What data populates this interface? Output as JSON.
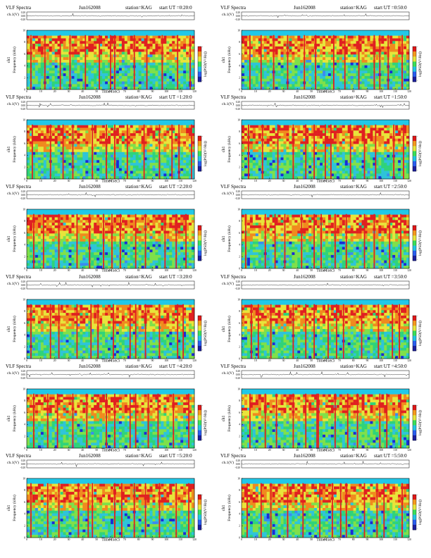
{
  "page": {
    "width": 612,
    "height": 792
  },
  "chart_data": [
    {
      "type": "heatmap",
      "title": "VLF Spectra",
      "date": "Jun162008",
      "station": "station=KAG",
      "start_ut": "start UT =0:20:0",
      "ch_label": "ch.1(V)",
      "ch_ticks": [
        "0.20",
        "0.00",
        "-0.20"
      ],
      "ylabel_top": "ch1",
      "ylabel": "Frequency (kHz)",
      "ylim": [
        0,
        10
      ],
      "yticks": [
        "0",
        "2",
        "4",
        "6",
        "8",
        "10"
      ],
      "xlabel": "Time (sec)",
      "xlim": [
        0,
        120
      ],
      "xticks": [
        "0",
        "10",
        "20",
        "30",
        "40",
        "50",
        "60",
        "70",
        "80",
        "90",
        "100",
        "110",
        "120"
      ],
      "colorbar_label": "log(PSD(V²/Hz))",
      "colorbar_ticks": [
        "-",
        "-"
      ],
      "bursts": [
        3,
        13,
        24,
        31,
        42,
        52,
        60,
        63,
        77,
        86,
        97,
        108,
        117
      ]
    },
    {
      "type": "heatmap",
      "title": "VLF Spectra",
      "date": "Jun162008",
      "station": "station=KAG",
      "start_ut": "start UT =0:50:0",
      "ch_label": "ch.1(V)",
      "ch_ticks": [
        "0.20",
        "0.00",
        "-0.20"
      ],
      "ylabel_top": "ch1",
      "ylabel": "Frequency (kHz)",
      "ylim": [
        0,
        10
      ],
      "yticks": [
        "0",
        "2",
        "4",
        "6",
        "8",
        "10"
      ],
      "xlabel": "Time (sec)",
      "xlim": [
        0,
        120
      ],
      "xticks": [
        "0",
        "10",
        "20",
        "30",
        "40",
        "50",
        "60",
        "70",
        "80",
        "90",
        "100",
        "110",
        "120"
      ],
      "colorbar_label": "log(PSD(V²/Hz))",
      "colorbar_ticks": [
        "-",
        "-"
      ],
      "bursts": [
        6,
        14,
        23,
        33,
        45,
        53,
        66,
        74,
        84,
        95,
        99,
        105,
        115
      ]
    },
    {
      "type": "heatmap",
      "title": "VLF Spectra",
      "date": "Jun162008",
      "station": "station=KAG",
      "start_ut": "start UT =1:20:0",
      "ch_label": "ch.1(V)",
      "ch_ticks": [
        "0.20",
        "0.00",
        "-0.20"
      ],
      "ylabel_top": "ch1",
      "ylabel": "Frequency (kHz)",
      "ylim": [
        0,
        10
      ],
      "yticks": [
        "0",
        "2",
        "4",
        "6",
        "8",
        "10"
      ],
      "xlabel": "Time (sec)",
      "xlim": [
        0,
        120
      ],
      "xticks": [
        "0",
        "10",
        "20",
        "30",
        "40",
        "50",
        "60",
        "70",
        "80",
        "90",
        "100",
        "110",
        "120"
      ],
      "colorbar_label": "log(PSD(V²/Hz))",
      "colorbar_ticks": [
        "-",
        "-"
      ],
      "bursts": [
        4,
        17,
        26,
        33,
        47,
        57,
        63,
        72,
        84,
        95,
        104,
        109,
        118
      ]
    },
    {
      "type": "heatmap",
      "title": "VLF Spectra",
      "date": "Jun162008",
      "station": "station=KAG",
      "start_ut": "start UT =1:50:0",
      "ch_label": "ch.1(V)",
      "ch_ticks": [
        "0.20",
        "0.00",
        "-0.20"
      ],
      "ylabel_top": "ch1",
      "ylabel": "Frequency (kHz)",
      "ylim": [
        0,
        10
      ],
      "yticks": [
        "0",
        "2",
        "4",
        "6",
        "8",
        "10"
      ],
      "xlabel": "Time (sec)",
      "xlim": [
        0,
        120
      ],
      "xticks": [
        "0",
        "10",
        "20",
        "30",
        "40",
        "50",
        "60",
        "70",
        "80",
        "90",
        "100",
        "110",
        "120"
      ],
      "colorbar_label": "log(PSD(V²/Hz))",
      "colorbar_ticks": [
        "-",
        "-"
      ],
      "bursts": [
        5,
        15,
        26,
        37,
        46,
        52,
        60,
        64,
        78,
        88,
        96,
        109,
        116
      ]
    },
    {
      "type": "heatmap",
      "title": "VLF Spectra",
      "date": "Jun162008",
      "station": "station=KAG",
      "start_ut": "start UT =2:20:0",
      "ch_label": "ch.1(V)",
      "ch_ticks": [
        "0.20",
        "0.00",
        "-0.20"
      ],
      "ylabel_top": "ch1",
      "ylabel": "Frequency (kHz)",
      "ylim": [
        0,
        10
      ],
      "yticks": [
        "0",
        "2",
        "4",
        "6",
        "8",
        "10"
      ],
      "xlabel": "Time (sec)",
      "xlim": [
        0,
        120
      ],
      "xticks": [
        "0",
        "10",
        "20",
        "30",
        "40",
        "50",
        "60",
        "70",
        "80",
        "90",
        "100",
        "110",
        "120"
      ],
      "colorbar_label": "log(PSD(V²/Hz))",
      "colorbar_ticks": [
        "-",
        "-"
      ],
      "bursts": [
        5,
        12,
        23,
        36,
        45,
        55,
        61,
        67,
        78,
        85,
        99,
        107,
        114
      ]
    },
    {
      "type": "heatmap",
      "title": "VLF Spectra",
      "date": "Jun162008",
      "station": "station=KAG",
      "start_ut": "start UT =2:50:0",
      "ch_label": "ch.1(V)",
      "ch_ticks": [
        "0.20",
        "0.00",
        "-0.20"
      ],
      "ylabel_top": "ch1",
      "ylabel": "Frequency (kHz)",
      "ylim": [
        0,
        10
      ],
      "yticks": [
        "0",
        "2",
        "4",
        "6",
        "8",
        "10"
      ],
      "xlabel": "Time (sec)",
      "xlim": [
        0,
        120
      ],
      "xticks": [
        "0",
        "10",
        "20",
        "30",
        "40",
        "50",
        "60",
        "70",
        "80",
        "90",
        "100",
        "110",
        "120"
      ],
      "colorbar_label": "log(PSD(V²/Hz))",
      "colorbar_ticks": [
        "-",
        "-"
      ],
      "bursts": [
        3,
        17,
        24,
        31,
        43,
        52,
        57,
        67,
        75,
        88,
        95,
        106,
        114
      ]
    },
    {
      "type": "heatmap",
      "title": "VLF Spectra",
      "date": "Jun162008",
      "station": "station=KAG",
      "start_ut": "start UT =3:20:0",
      "ch_label": "ch.1(V)",
      "ch_ticks": [
        "0.20",
        "0.00",
        "-0.20"
      ],
      "ylabel_top": "ch1",
      "ylabel": "Frequency (kHz)",
      "ylim": [
        0,
        10
      ],
      "yticks": [
        "0",
        "2",
        "4",
        "6",
        "8",
        "10"
      ],
      "xlabel": "Time (sec)",
      "xlim": [
        0,
        120
      ],
      "xticks": [
        "0",
        "10",
        "20",
        "30",
        "40",
        "50",
        "60",
        "70",
        "80",
        "90",
        "100",
        "110",
        "120"
      ],
      "colorbar_label": "log(PSD(V²/Hz))",
      "colorbar_ticks": [
        "-",
        "-"
      ],
      "bursts": [
        3,
        17,
        23,
        36,
        46,
        51,
        62,
        74,
        78,
        85,
        95,
        108,
        112
      ]
    },
    {
      "type": "heatmap",
      "title": "VLF Spectra",
      "date": "Jun162008",
      "station": "station=KAG",
      "start_ut": "start UT =3:50:0",
      "ch_label": "ch.1(V)",
      "ch_ticks": [
        "0.20",
        "0.00",
        "-0.20"
      ],
      "ylabel_top": "ch1",
      "ylabel": "Frequency (kHz)",
      "ylim": [
        0,
        10
      ],
      "yticks": [
        "0",
        "2",
        "4",
        "6",
        "8",
        "10"
      ],
      "xlabel": "Time (sec)",
      "xlim": [
        0,
        120
      ],
      "xticks": [
        "0",
        "10",
        "20",
        "30",
        "40",
        "50",
        "60",
        "70",
        "80",
        "90",
        "100",
        "110",
        "120"
      ],
      "colorbar_label": "log(PSD(V²/Hz))",
      "colorbar_ticks": [
        "-",
        "-"
      ],
      "bursts": [
        7,
        12,
        21,
        37,
        46,
        52,
        62,
        68,
        73,
        86,
        98,
        108,
        113
      ]
    },
    {
      "type": "heatmap",
      "title": "VLF Spectra",
      "date": "Jun162008",
      "station": "station=KAG",
      "start_ut": "start UT =4:20:0",
      "ch_label": "ch.1(V)",
      "ch_ticks": [
        "0.20",
        "0.00",
        "-0.20"
      ],
      "ylabel_top": "ch1",
      "ylabel": "Frequency (kHz)",
      "ylim": [
        0,
        10
      ],
      "yticks": [
        "0",
        "2",
        "4",
        "6",
        "8",
        "10"
      ],
      "xlabel": "Time (sec)",
      "xlim": [
        0,
        120
      ],
      "xticks": [
        "0",
        "10",
        "20",
        "30",
        "40",
        "50",
        "60",
        "70",
        "80",
        "90",
        "100",
        "110",
        "120"
      ],
      "colorbar_label": "log(PSD(V²/Hz))",
      "colorbar_ticks": [
        "-",
        "-"
      ],
      "bursts": [
        5,
        15,
        22,
        33,
        43,
        57,
        63,
        74,
        78,
        87,
        94,
        105,
        116
      ]
    },
    {
      "type": "heatmap",
      "title": "VLF Spectra",
      "date": "Jun162008",
      "station": "station=KAG",
      "start_ut": "start UT =4:50:0",
      "ch_label": "ch.1(V)",
      "ch_ticks": [
        "0.20",
        "0.00",
        "-0.20"
      ],
      "ylabel_top": "ch1",
      "ylabel": "Frequency (kHz)",
      "ylim": [
        0,
        10
      ],
      "yticks": [
        "0",
        "2",
        "4",
        "6",
        "8",
        "10"
      ],
      "xlabel": "Time (sec)",
      "xlim": [
        0,
        120
      ],
      "xticks": [
        "0",
        "10",
        "20",
        "30",
        "40",
        "50",
        "60",
        "70",
        "80",
        "90",
        "100",
        "110",
        "120"
      ],
      "colorbar_label": "log(PSD(V²/Hz))",
      "colorbar_ticks": [
        "-",
        "-"
      ],
      "bursts": [
        6,
        17,
        25,
        37,
        46,
        54,
        55,
        67,
        76,
        83,
        99,
        104,
        114
      ]
    },
    {
      "type": "heatmap",
      "title": "VLF Spectra",
      "date": "Jun162008",
      "station": "station=KAG",
      "start_ut": "start UT =5:20:0",
      "ch_label": "ch.1(V)",
      "ch_ticks": [
        "0.20",
        "0.00",
        "-0.20"
      ],
      "ylabel_top": "ch1",
      "ylabel": "Frequency (kHz)",
      "ylim": [
        0,
        10
      ],
      "yticks": [
        "0",
        "2",
        "4",
        "6",
        "8",
        "10"
      ],
      "xlabel": "Time (sec)",
      "xlim": [
        0,
        120
      ],
      "xticks": [
        "0",
        "10",
        "20",
        "30",
        "40",
        "50",
        "60",
        "70",
        "80",
        "90",
        "100",
        "110",
        "120"
      ],
      "colorbar_label": "log(PSD(V²/Hz))",
      "colorbar_ticks": [
        "-",
        "-"
      ],
      "bursts": [
        3,
        15,
        23,
        37,
        44,
        47,
        63,
        68,
        77,
        85,
        95,
        107,
        116
      ]
    },
    {
      "type": "heatmap",
      "title": "VLF Spectra",
      "date": "Jun162008",
      "station": "station=KAG",
      "start_ut": "start UT =5:50:0",
      "ch_label": "ch.1(V)",
      "ch_ticks": [
        "0.20",
        "0.00",
        "-0.20"
      ],
      "ylabel_top": "ch1",
      "ylabel": "Frequency (kHz)",
      "ylim": [
        0,
        10
      ],
      "yticks": [
        "0",
        "2",
        "4",
        "6",
        "8",
        "10"
      ],
      "xlabel": "Time (sec)",
      "xlim": [
        0,
        120
      ],
      "xticks": [
        "0",
        "10",
        "20",
        "30",
        "40",
        "50",
        "60",
        "70",
        "80",
        "90",
        "100",
        "110",
        "120"
      ],
      "colorbar_label": "log(PSD(V²/Hz))",
      "colorbar_ticks": [
        "-",
        "-"
      ],
      "bursts": [
        4,
        14,
        21,
        33,
        44,
        56,
        65,
        71,
        75,
        88,
        97,
        102,
        115
      ]
    }
  ],
  "palette": {
    "spectrogram": [
      "#1a2bd6",
      "#3b8bf0",
      "#2ec4d8",
      "#2fd37a",
      "#7fe04a",
      "#e8e43a",
      "#f08a1e",
      "#e02020"
    ],
    "top_band": "#21c8e8",
    "gap": "#ffffff",
    "colorbar": [
      "#1c1f9e",
      "#2a5ef0",
      "#22c6e6",
      "#3ae05a",
      "#e6e63a",
      "#f59a1e",
      "#e01818"
    ]
  }
}
